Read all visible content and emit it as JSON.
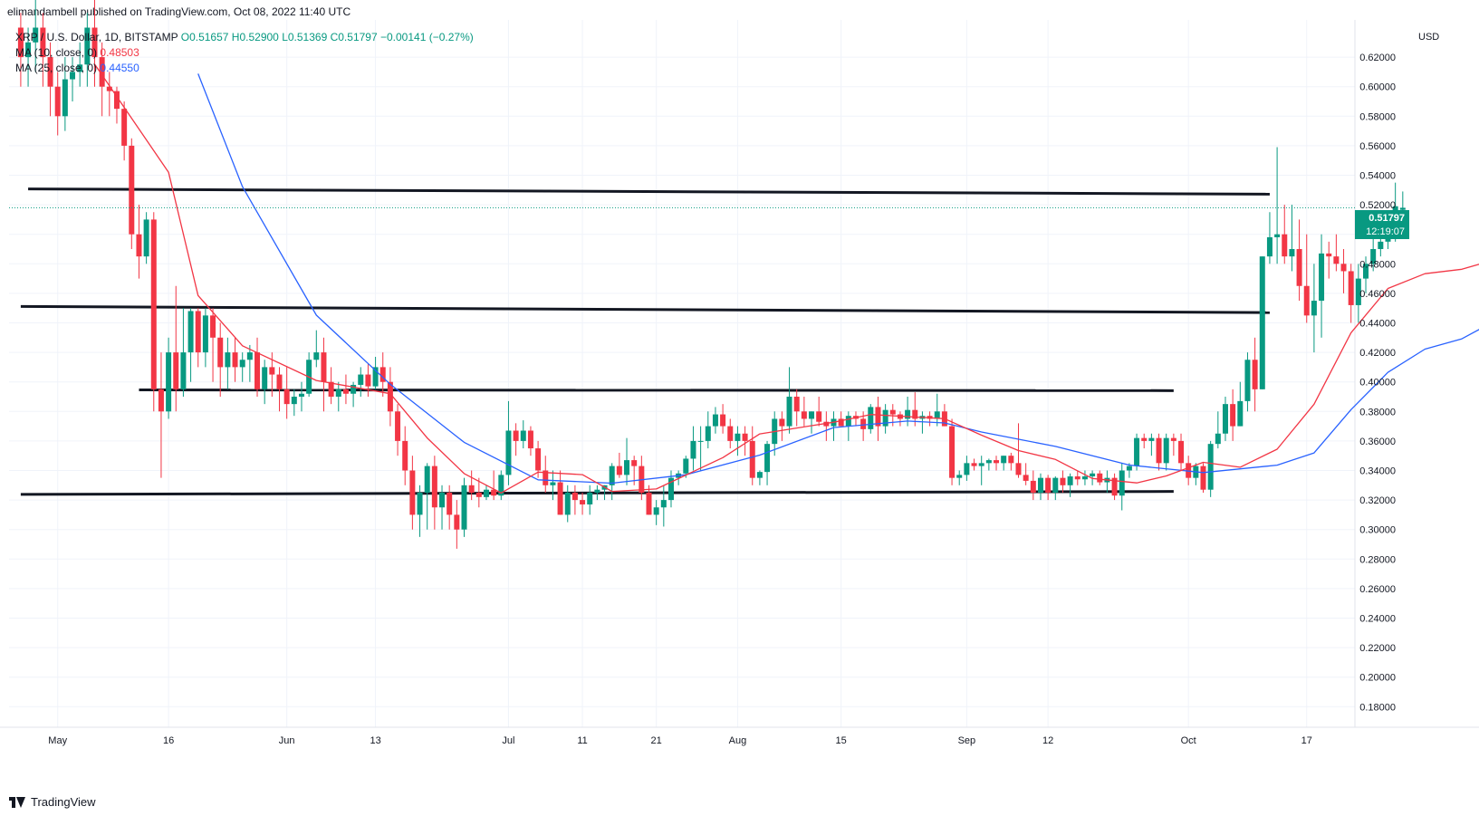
{
  "header": {
    "published": "elimandambell published on TradingView.com, Oct 08, 2022 11:40 UTC"
  },
  "legend": {
    "symbol": "XRP / U.S. Dollar, 1D, BITSTAMP",
    "open": "O0.51657",
    "high": "H0.52900",
    "low": "L0.51369",
    "close": "C0.51797",
    "change": "−0.00141 (−0.27%)",
    "ma10_label": "MA (10, close, 0)",
    "ma10_value": "0.48503",
    "ma25_label": "MA (25, close, 0)",
    "ma25_value": "0.44550"
  },
  "footer": {
    "brand": "TradingView"
  },
  "colors": {
    "up": "#089981",
    "down": "#f23645",
    "ma10": "#f23645",
    "ma25": "#2962ff",
    "support": "#131722",
    "last_price": "#089981"
  },
  "chart_data": {
    "type": "candlestick",
    "symbol": "XRP / U.S. Dollar",
    "interval": "1D",
    "exchange": "BITSTAMP",
    "currency": "USD",
    "ylim": [
      0.165,
      0.635
    ],
    "y_ticks": [
      "0.62000",
      "0.60000",
      "0.58000",
      "0.56000",
      "0.54000",
      "0.52000",
      "0.50000",
      "0.48000",
      "0.46000",
      "0.44000",
      "0.42000",
      "0.40000",
      "0.38000",
      "0.36000",
      "0.34000",
      "0.32000",
      "0.30000",
      "0.28000",
      "0.26000",
      "0.24000",
      "0.22000",
      "0.20000",
      "0.18000"
    ],
    "x_ticks": [
      {
        "label": "May",
        "date": "2022-05-01"
      },
      {
        "label": "16",
        "date": "2022-05-16"
      },
      {
        "label": "Jun",
        "date": "2022-06-01"
      },
      {
        "label": "13",
        "date": "2022-06-13"
      },
      {
        "label": "Jul",
        "date": "2022-07-01"
      },
      {
        "label": "11",
        "date": "2022-07-11"
      },
      {
        "label": "21",
        "date": "2022-07-21"
      },
      {
        "label": "Aug",
        "date": "2022-08-01"
      },
      {
        "label": "15",
        "date": "2022-08-15"
      },
      {
        "label": "Sep",
        "date": "2022-09-01"
      },
      {
        "label": "12",
        "date": "2022-09-12"
      },
      {
        "label": "Oct",
        "date": "2022-10-01"
      },
      {
        "label": "17",
        "date": "2022-10-17"
      }
    ],
    "start_date": "2022-04-26",
    "last_price": "0.51797",
    "countdown": "12:19:07",
    "candles": [
      [
        0.64,
        0.65,
        0.6,
        0.62
      ],
      [
        0.62,
        0.64,
        0.6,
        0.63
      ],
      [
        0.63,
        0.66,
        0.61,
        0.64
      ],
      [
        0.64,
        0.65,
        0.6,
        0.62
      ],
      [
        0.62,
        0.63,
        0.58,
        0.6
      ],
      [
        0.6,
        0.61,
        0.567,
        0.58
      ],
      [
        0.58,
        0.62,
        0.57,
        0.605
      ],
      [
        0.605,
        0.62,
        0.59,
        0.61
      ],
      [
        0.61,
        0.63,
        0.6,
        0.615
      ],
      [
        0.615,
        0.65,
        0.6,
        0.64
      ],
      [
        0.64,
        0.67,
        0.6,
        0.62
      ],
      [
        0.62,
        0.63,
        0.58,
        0.6
      ],
      [
        0.6,
        0.61,
        0.58,
        0.597
      ],
      [
        0.597,
        0.6,
        0.575,
        0.585
      ],
      [
        0.585,
        0.59,
        0.55,
        0.56
      ],
      [
        0.56,
        0.565,
        0.49,
        0.5
      ],
      [
        0.5,
        0.52,
        0.47,
        0.485
      ],
      [
        0.485,
        0.515,
        0.48,
        0.51
      ],
      [
        0.51,
        0.515,
        0.38,
        0.395
      ],
      [
        0.395,
        0.42,
        0.335,
        0.38
      ],
      [
        0.38,
        0.43,
        0.375,
        0.42
      ],
      [
        0.42,
        0.465,
        0.38,
        0.395
      ],
      [
        0.395,
        0.45,
        0.39,
        0.42
      ],
      [
        0.42,
        0.45,
        0.4,
        0.448
      ],
      [
        0.448,
        0.45,
        0.41,
        0.42
      ],
      [
        0.42,
        0.45,
        0.41,
        0.445
      ],
      [
        0.445,
        0.45,
        0.4,
        0.43
      ],
      [
        0.43,
        0.44,
        0.39,
        0.41
      ],
      [
        0.41,
        0.43,
        0.395,
        0.42
      ],
      [
        0.42,
        0.43,
        0.4,
        0.41
      ],
      [
        0.41,
        0.42,
        0.4,
        0.415
      ],
      [
        0.415,
        0.425,
        0.4,
        0.42
      ],
      [
        0.42,
        0.43,
        0.39,
        0.395
      ],
      [
        0.395,
        0.415,
        0.385,
        0.41
      ],
      [
        0.41,
        0.42,
        0.39,
        0.405
      ],
      [
        0.405,
        0.41,
        0.38,
        0.395
      ],
      [
        0.395,
        0.41,
        0.375,
        0.385
      ],
      [
        0.385,
        0.395,
        0.377,
        0.39
      ],
      [
        0.39,
        0.4,
        0.38,
        0.392
      ],
      [
        0.392,
        0.42,
        0.39,
        0.415
      ],
      [
        0.415,
        0.435,
        0.41,
        0.42
      ],
      [
        0.42,
        0.43,
        0.38,
        0.4
      ],
      [
        0.4,
        0.41,
        0.385,
        0.39
      ],
      [
        0.39,
        0.4,
        0.38,
        0.395
      ],
      [
        0.395,
        0.405,
        0.385,
        0.392
      ],
      [
        0.392,
        0.4,
        0.383,
        0.398
      ],
      [
        0.398,
        0.41,
        0.39,
        0.405
      ],
      [
        0.405,
        0.412,
        0.39,
        0.397
      ],
      [
        0.397,
        0.417,
        0.395,
        0.41
      ],
      [
        0.41,
        0.42,
        0.39,
        0.4
      ],
      [
        0.4,
        0.41,
        0.37,
        0.38
      ],
      [
        0.38,
        0.385,
        0.35,
        0.36
      ],
      [
        0.36,
        0.37,
        0.33,
        0.34
      ],
      [
        0.34,
        0.35,
        0.3,
        0.31
      ],
      [
        0.31,
        0.33,
        0.295,
        0.325
      ],
      [
        0.325,
        0.345,
        0.3,
        0.343
      ],
      [
        0.343,
        0.35,
        0.3,
        0.315
      ],
      [
        0.315,
        0.33,
        0.3,
        0.325
      ],
      [
        0.325,
        0.33,
        0.3,
        0.31
      ],
      [
        0.31,
        0.32,
        0.287,
        0.3
      ],
      [
        0.3,
        0.335,
        0.295,
        0.33
      ],
      [
        0.33,
        0.34,
        0.32,
        0.325
      ],
      [
        0.325,
        0.335,
        0.315,
        0.322
      ],
      [
        0.322,
        0.33,
        0.32,
        0.327
      ],
      [
        0.327,
        0.34,
        0.32,
        0.323
      ],
      [
        0.323,
        0.34,
        0.32,
        0.337
      ],
      [
        0.337,
        0.387,
        0.33,
        0.367
      ],
      [
        0.367,
        0.372,
        0.35,
        0.36
      ],
      [
        0.36,
        0.374,
        0.355,
        0.367
      ],
      [
        0.367,
        0.37,
        0.35,
        0.355
      ],
      [
        0.355,
        0.36,
        0.335,
        0.34
      ],
      [
        0.34,
        0.35,
        0.325,
        0.33
      ],
      [
        0.33,
        0.34,
        0.32,
        0.332
      ],
      [
        0.332,
        0.34,
        0.31,
        0.31
      ],
      [
        0.31,
        0.33,
        0.305,
        0.325
      ],
      [
        0.325,
        0.33,
        0.31,
        0.32
      ],
      [
        0.32,
        0.325,
        0.31,
        0.317
      ],
      [
        0.317,
        0.33,
        0.31,
        0.325
      ],
      [
        0.325,
        0.33,
        0.32,
        0.327
      ],
      [
        0.327,
        0.33,
        0.32,
        0.33
      ],
      [
        0.33,
        0.345,
        0.32,
        0.343
      ],
      [
        0.343,
        0.352,
        0.335,
        0.337
      ],
      [
        0.337,
        0.362,
        0.33,
        0.347
      ],
      [
        0.347,
        0.35,
        0.33,
        0.343
      ],
      [
        0.343,
        0.35,
        0.32,
        0.325
      ],
      [
        0.325,
        0.33,
        0.31,
        0.31
      ],
      [
        0.31,
        0.32,
        0.303,
        0.315
      ],
      [
        0.315,
        0.33,
        0.302,
        0.32
      ],
      [
        0.32,
        0.34,
        0.315,
        0.335
      ],
      [
        0.335,
        0.34,
        0.33,
        0.338
      ],
      [
        0.338,
        0.35,
        0.335,
        0.348
      ],
      [
        0.348,
        0.37,
        0.34,
        0.36
      ],
      [
        0.36,
        0.37,
        0.34,
        0.36
      ],
      [
        0.36,
        0.38,
        0.355,
        0.37
      ],
      [
        0.37,
        0.383,
        0.365,
        0.378
      ],
      [
        0.378,
        0.385,
        0.365,
        0.37
      ],
      [
        0.37,
        0.375,
        0.355,
        0.36
      ],
      [
        0.36,
        0.37,
        0.35,
        0.365
      ],
      [
        0.365,
        0.37,
        0.35,
        0.36
      ],
      [
        0.36,
        0.37,
        0.33,
        0.335
      ],
      [
        0.335,
        0.34,
        0.33,
        0.339
      ],
      [
        0.339,
        0.36,
        0.33,
        0.358
      ],
      [
        0.358,
        0.38,
        0.35,
        0.375
      ],
      [
        0.375,
        0.38,
        0.36,
        0.37
      ],
      [
        0.37,
        0.41,
        0.365,
        0.39
      ],
      [
        0.39,
        0.395,
        0.37,
        0.38
      ],
      [
        0.38,
        0.39,
        0.37,
        0.375
      ],
      [
        0.375,
        0.38,
        0.365,
        0.38
      ],
      [
        0.38,
        0.39,
        0.37,
        0.373
      ],
      [
        0.373,
        0.38,
        0.36,
        0.37
      ],
      [
        0.37,
        0.38,
        0.36,
        0.375
      ],
      [
        0.375,
        0.38,
        0.37,
        0.37
      ],
      [
        0.37,
        0.38,
        0.36,
        0.377
      ],
      [
        0.377,
        0.38,
        0.37,
        0.375
      ],
      [
        0.375,
        0.38,
        0.36,
        0.368
      ],
      [
        0.368,
        0.385,
        0.365,
        0.383
      ],
      [
        0.383,
        0.39,
        0.36,
        0.37
      ],
      [
        0.37,
        0.385,
        0.365,
        0.381
      ],
      [
        0.381,
        0.385,
        0.37,
        0.378
      ],
      [
        0.378,
        0.38,
        0.37,
        0.375
      ],
      [
        0.375,
        0.39,
        0.37,
        0.381
      ],
      [
        0.381,
        0.393,
        0.37,
        0.375
      ],
      [
        0.375,
        0.38,
        0.365,
        0.377
      ],
      [
        0.377,
        0.38,
        0.37,
        0.375
      ],
      [
        0.375,
        0.392,
        0.37,
        0.38
      ],
      [
        0.38,
        0.385,
        0.37,
        0.37
      ],
      [
        0.37,
        0.375,
        0.33,
        0.335
      ],
      [
        0.335,
        0.34,
        0.33,
        0.337
      ],
      [
        0.337,
        0.35,
        0.333,
        0.345
      ],
      [
        0.345,
        0.348,
        0.34,
        0.343
      ],
      [
        0.343,
        0.35,
        0.33,
        0.345
      ],
      [
        0.345,
        0.348,
        0.34,
        0.347
      ],
      [
        0.347,
        0.35,
        0.34,
        0.345
      ],
      [
        0.345,
        0.35,
        0.34,
        0.35
      ],
      [
        0.35,
        0.352,
        0.34,
        0.345
      ],
      [
        0.345,
        0.372,
        0.335,
        0.337
      ],
      [
        0.337,
        0.345,
        0.33,
        0.333
      ],
      [
        0.333,
        0.34,
        0.32,
        0.325
      ],
      [
        0.325,
        0.338,
        0.32,
        0.335
      ],
      [
        0.335,
        0.337,
        0.32,
        0.325
      ],
      [
        0.325,
        0.336,
        0.32,
        0.335
      ],
      [
        0.335,
        0.34,
        0.325,
        0.33
      ],
      [
        0.33,
        0.338,
        0.322,
        0.336
      ],
      [
        0.336,
        0.34,
        0.33,
        0.334
      ],
      [
        0.334,
        0.34,
        0.33,
        0.336
      ],
      [
        0.336,
        0.34,
        0.33,
        0.338
      ],
      [
        0.338,
        0.34,
        0.33,
        0.332
      ],
      [
        0.332,
        0.34,
        0.325,
        0.335
      ],
      [
        0.335,
        0.338,
        0.32,
        0.323
      ],
      [
        0.323,
        0.345,
        0.313,
        0.34
      ],
      [
        0.34,
        0.345,
        0.335,
        0.343
      ],
      [
        0.343,
        0.365,
        0.34,
        0.362
      ],
      [
        0.362,
        0.365,
        0.355,
        0.36
      ],
      [
        0.36,
        0.365,
        0.35,
        0.362
      ],
      [
        0.362,
        0.365,
        0.34,
        0.345
      ],
      [
        0.345,
        0.365,
        0.34,
        0.362
      ],
      [
        0.362,
        0.365,
        0.35,
        0.36
      ],
      [
        0.36,
        0.365,
        0.34,
        0.345
      ],
      [
        0.345,
        0.35,
        0.33,
        0.335
      ],
      [
        0.335,
        0.345,
        0.33,
        0.343
      ],
      [
        0.343,
        0.345,
        0.325,
        0.327
      ],
      [
        0.327,
        0.36,
        0.322,
        0.358
      ],
      [
        0.358,
        0.38,
        0.355,
        0.365
      ],
      [
        0.365,
        0.39,
        0.36,
        0.385
      ],
      [
        0.385,
        0.395,
        0.36,
        0.37
      ],
      [
        0.37,
        0.4,
        0.37,
        0.387
      ],
      [
        0.387,
        0.42,
        0.38,
        0.415
      ],
      [
        0.415,
        0.43,
        0.38,
        0.395
      ],
      [
        0.395,
        0.485,
        0.395,
        0.485
      ],
      [
        0.485,
        0.515,
        0.48,
        0.498
      ],
      [
        0.498,
        0.559,
        0.48,
        0.5
      ],
      [
        0.5,
        0.52,
        0.48,
        0.485
      ],
      [
        0.485,
        0.52,
        0.475,
        0.49
      ],
      [
        0.49,
        0.51,
        0.455,
        0.465
      ],
      [
        0.465,
        0.5,
        0.44,
        0.445
      ],
      [
        0.445,
        0.48,
        0.42,
        0.455
      ],
      [
        0.455,
        0.5,
        0.43,
        0.487
      ],
      [
        0.487,
        0.495,
        0.47,
        0.485
      ],
      [
        0.485,
        0.5,
        0.475,
        0.48
      ],
      [
        0.48,
        0.49,
        0.46,
        0.475
      ],
      [
        0.475,
        0.48,
        0.44,
        0.452
      ],
      [
        0.452,
        0.48,
        0.44,
        0.47
      ],
      [
        0.47,
        0.485,
        0.46,
        0.48
      ],
      [
        0.48,
        0.5,
        0.475,
        0.49
      ],
      [
        0.49,
        0.505,
        0.485,
        0.495
      ],
      [
        0.495,
        0.51,
        0.49,
        0.5
      ],
      [
        0.5,
        0.535,
        0.495,
        0.519
      ],
      [
        0.51657,
        0.529,
        0.51369,
        0.51797
      ]
    ],
    "ma10": [
      [
        10,
        0.6152
      ],
      [
        20,
        0.542
      ],
      [
        24,
        0.4585
      ],
      [
        30,
        0.4245
      ],
      [
        40,
        0.401
      ],
      [
        50,
        0.392
      ],
      [
        55,
        0.362
      ],
      [
        60,
        0.3379
      ],
      [
        65,
        0.3248
      ],
      [
        70,
        0.3389
      ],
      [
        76,
        0.3372
      ],
      [
        80,
        0.3258
      ],
      [
        86,
        0.3275
      ],
      [
        95,
        0.3487
      ],
      [
        100,
        0.3648
      ],
      [
        105,
        0.3688
      ],
      [
        110,
        0.3727
      ],
      [
        115,
        0.3779
      ],
      [
        125,
        0.3751
      ],
      [
        130,
        0.3639
      ],
      [
        135,
        0.3535
      ],
      [
        140,
        0.3475
      ],
      [
        145,
        0.3346
      ],
      [
        151,
        0.3316
      ],
      [
        155,
        0.3363
      ],
      [
        160,
        0.3455
      ],
      [
        165,
        0.3422
      ],
      [
        170,
        0.3544
      ],
      [
        175,
        0.3849
      ],
      [
        180,
        0.4333
      ],
      [
        185,
        0.4633
      ],
      [
        190,
        0.4733
      ],
      [
        195,
        0.4763
      ],
      [
        201,
        0.48503
      ]
    ],
    "ma25": [
      [
        24,
        0.6088
      ],
      [
        30,
        0.5323
      ],
      [
        40,
        0.4452
      ],
      [
        50,
        0.3984
      ],
      [
        60,
        0.3591
      ],
      [
        70,
        0.3337
      ],
      [
        80,
        0.3314
      ],
      [
        90,
        0.3371
      ],
      [
        100,
        0.3504
      ],
      [
        110,
        0.3691
      ],
      [
        120,
        0.3735
      ],
      [
        125,
        0.3722
      ],
      [
        130,
        0.3661
      ],
      [
        140,
        0.3563
      ],
      [
        150,
        0.3437
      ],
      [
        160,
        0.3386
      ],
      [
        170,
        0.3436
      ],
      [
        175,
        0.3519
      ],
      [
        180,
        0.3812
      ],
      [
        185,
        0.4065
      ],
      [
        190,
        0.4222
      ],
      [
        195,
        0.4292
      ],
      [
        201,
        0.4455
      ]
    ],
    "trendlines": [
      {
        "from": [
          "2022-04-27",
          0.5307
        ],
        "to": [
          "2022-10-12",
          0.5272
        ]
      },
      {
        "from": [
          "2022-04-26",
          0.4511
        ],
        "to": [
          "2022-10-12",
          0.447
        ]
      },
      {
        "from": [
          "2022-05-12",
          0.3946
        ],
        "to": [
          "2022-09-29",
          0.3941
        ]
      },
      {
        "from": [
          "2022-04-26",
          0.3238
        ],
        "to": [
          "2022-09-29",
          0.3258
        ]
      }
    ]
  }
}
